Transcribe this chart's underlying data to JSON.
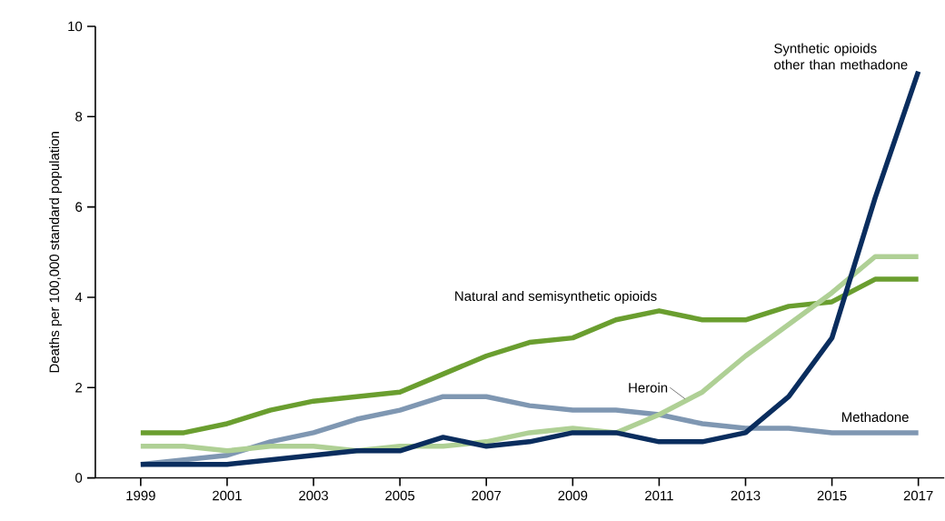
{
  "chart_data": {
    "type": "line",
    "ylabel": "Deaths per 100,000 standard population",
    "x": [
      1999,
      2000,
      2001,
      2002,
      2003,
      2004,
      2005,
      2006,
      2007,
      2008,
      2009,
      2010,
      2011,
      2012,
      2013,
      2014,
      2015,
      2016,
      2017
    ],
    "xlim": [
      1997.95,
      2017.6
    ],
    "xticks": [
      1999,
      2001,
      2003,
      2005,
      2007,
      2009,
      2011,
      2013,
      2015,
      2017
    ],
    "ylim": [
      0,
      10
    ],
    "yticks": [
      0,
      2,
      4,
      6,
      8,
      10
    ],
    "grid": false,
    "legend": false,
    "marker": "none",
    "line_style": "solid",
    "series": [
      {
        "name": "Natural and semisynthetic opioids",
        "color": "#6a9e2f",
        "values": [
          1.0,
          1.0,
          1.2,
          1.5,
          1.7,
          1.8,
          1.9,
          2.3,
          2.7,
          3.0,
          3.1,
          3.5,
          3.7,
          3.5,
          3.5,
          3.8,
          3.9,
          4.4,
          4.4
        ]
      },
      {
        "name": "Methadone",
        "color": "#7f97b2",
        "values": [
          0.3,
          0.4,
          0.5,
          0.8,
          1.0,
          1.3,
          1.5,
          1.8,
          1.8,
          1.6,
          1.5,
          1.5,
          1.4,
          1.2,
          1.1,
          1.1,
          1.0,
          1.0,
          1.0
        ]
      },
      {
        "name": "Heroin",
        "color": "#afd095",
        "values": [
          0.7,
          0.7,
          0.6,
          0.7,
          0.7,
          0.6,
          0.7,
          0.7,
          0.8,
          1.0,
          1.1,
          1.0,
          1.4,
          1.9,
          2.7,
          3.4,
          4.1,
          4.9,
          4.9
        ]
      },
      {
        "name": "Synthetic opioids other than methadone",
        "color": "#0a2d5e",
        "values": [
          0.3,
          0.3,
          0.3,
          0.4,
          0.5,
          0.6,
          0.6,
          0.9,
          0.7,
          0.8,
          1.0,
          1.0,
          0.8,
          0.8,
          1.0,
          1.8,
          3.1,
          6.2,
          9.0
        ]
      }
    ]
  }
}
